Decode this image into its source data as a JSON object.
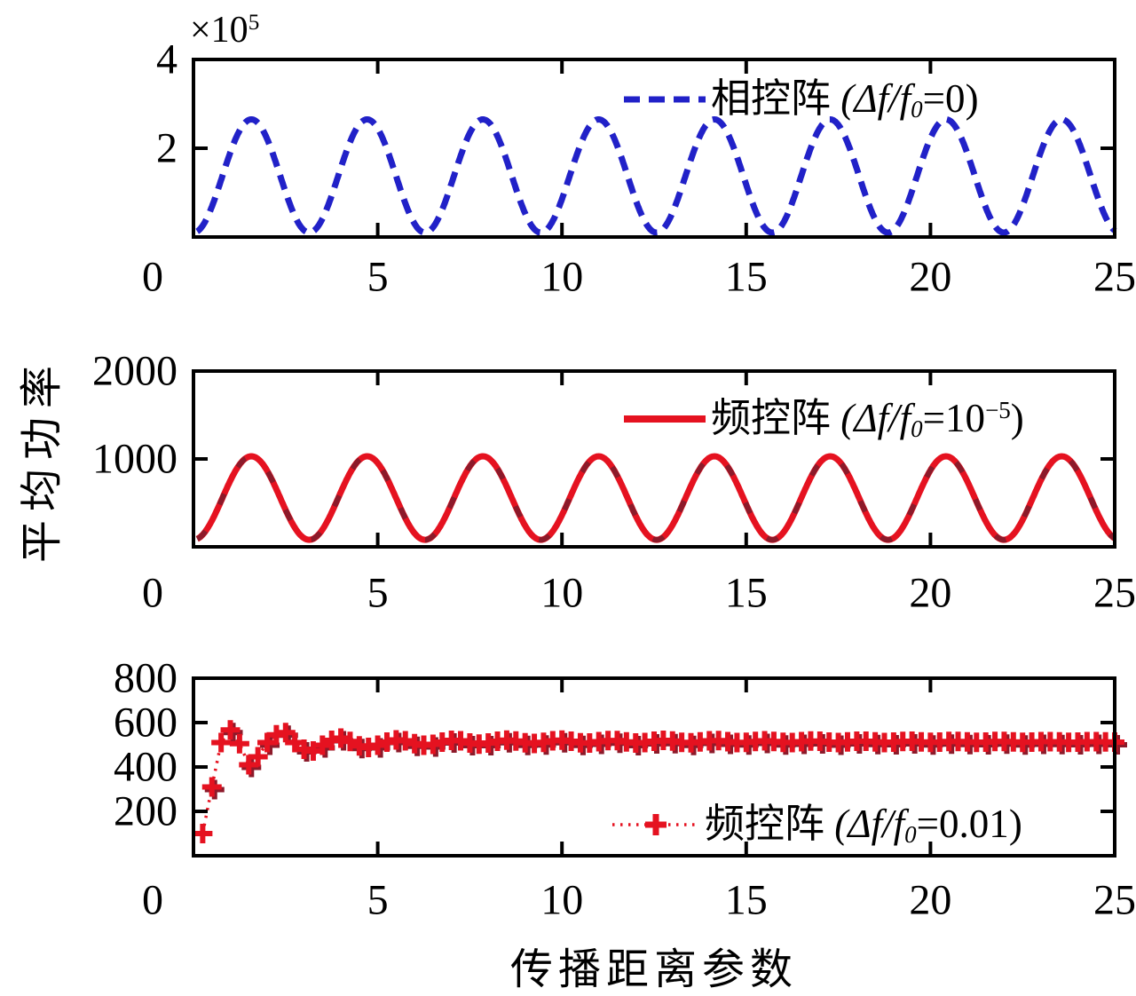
{
  "figure": {
    "xlabel": "传播距离参数",
    "ylabel": "平均功率",
    "background": "#ffffff",
    "axis_color": "#000000"
  },
  "chart_data": [
    {
      "type": "line",
      "panel": "top",
      "xlim": [
        0,
        25
      ],
      "ylim": [
        0,
        400000
      ],
      "x_ticks": [
        0,
        5,
        10,
        15,
        20,
        25
      ],
      "y_ticks": [
        {
          "value": 200000,
          "label": "2"
        },
        {
          "value": 400000,
          "label": "4"
        }
      ],
      "y_multiplier": {
        "base": "×10",
        "exp": "5"
      },
      "grid": false,
      "legend_position": "upper-right-inside",
      "legend": {
        "series_name": "相控阵",
        "formula_pre": " (Δf/f",
        "formula_sub": "0",
        "formula_mid": "=0",
        "formula_sup": "",
        "formula_post": ")"
      },
      "series": [
        {
          "name": "相控阵 (Δf/f0=0)",
          "color": "#2121c8",
          "line_style": "dashed",
          "line_width": 7,
          "marker": "none",
          "model": {
            "kind": "offset-sin-squared",
            "formula": "y = 10000 + 255000*sin(x)^2",
            "offset": 10000,
            "amplitude": 255000,
            "period_x": 3.1416,
            "x_start": 0.1,
            "x_end": 25,
            "peak_y": 265000,
            "valley_y": 10000,
            "peaks_x": [
              1.57,
              4.71,
              7.85,
              11.0,
              14.14,
              17.28,
              20.42,
              23.56
            ]
          }
        }
      ]
    },
    {
      "type": "line",
      "panel": "middle",
      "xlim": [
        0,
        25
      ],
      "ylim": [
        0,
        2000
      ],
      "x_ticks": [
        0,
        5,
        10,
        15,
        20,
        25
      ],
      "y_ticks": [
        {
          "value": 1000,
          "label": "1000"
        },
        {
          "value": 2000,
          "label": "2000"
        }
      ],
      "grid": false,
      "legend_position": "upper-right-inside",
      "legend": {
        "series_name": "频控阵",
        "formula_pre": " (Δf/f",
        "formula_sub": "0",
        "formula_mid": "=10",
        "formula_sup": "−5",
        "formula_post": ")"
      },
      "series": [
        {
          "name": "频控阵 (Δf/f0=10^-5)",
          "color": "#e51220",
          "shadow_color": "#8c1a2a",
          "line_style": "solid",
          "line_width": 7,
          "marker": "none",
          "model": {
            "kind": "offset-sin-squared",
            "formula": "y = 80 + 950*sin(x)^2",
            "offset": 80,
            "amplitude": 950,
            "period_x": 3.1416,
            "x_start": 0.1,
            "x_end": 25,
            "peak_y": 1030,
            "valley_y": 80,
            "peaks_x": [
              1.57,
              4.71,
              7.85,
              11.0,
              14.14,
              17.28,
              20.42,
              23.56
            ]
          }
        }
      ]
    },
    {
      "type": "scatter-line",
      "panel": "bottom",
      "xlim": [
        0,
        25
      ],
      "ylim": [
        0,
        800
      ],
      "x_ticks": [
        0,
        5,
        10,
        15,
        20,
        25
      ],
      "y_ticks": [
        {
          "value": 200,
          "label": "200"
        },
        {
          "value": 400,
          "label": "400"
        },
        {
          "value": 600,
          "label": "600"
        },
        {
          "value": 800,
          "label": "800"
        }
      ],
      "grid": false,
      "legend_position": "lower-right-inside",
      "legend": {
        "series_name": "频控阵",
        "formula_pre": " (Δf/f",
        "formula_sub": "0",
        "formula_mid": "=0.01",
        "formula_sup": "",
        "formula_post": ")"
      },
      "series": [
        {
          "name": "频控阵 (Δf/f0=0.01)",
          "color": "#e51220",
          "shadow_color": "#8c1a2a",
          "line_style": "dotted",
          "line_width": 3.5,
          "marker": "plus",
          "converges_to": 513,
          "points": {
            "x_start": 0.25,
            "x_step": 0.25,
            "y": [
              100,
              310,
              510,
              567,
              505,
              410,
              446,
              510,
              545,
              555,
              510,
              480,
              472,
              498,
              520,
              530,
              515,
              495,
              488,
              498,
              512,
              522,
              518,
              505,
              498,
              502,
              512,
              520,
              518,
              508,
              503,
              508,
              516,
              521,
              517,
              509,
              506,
              511,
              518,
              521,
              516,
              509,
              508,
              514,
              519,
              519,
              513,
              508,
              510,
              516,
              520,
              517,
              511,
              509,
              513,
              518,
              519,
              514,
              510,
              511,
              515,
              518,
              515,
              511,
              510,
              514,
              517,
              516,
              512,
              510,
              513,
              516,
              516,
              513,
              510,
              512,
              515,
              516,
              513,
              511,
              512,
              515,
              515,
              513,
              511,
              512,
              515,
              515,
              513,
              511,
              512,
              514,
              514,
              513,
              511,
              512,
              514,
              514,
              513,
              512
            ]
          }
        }
      ]
    }
  ]
}
